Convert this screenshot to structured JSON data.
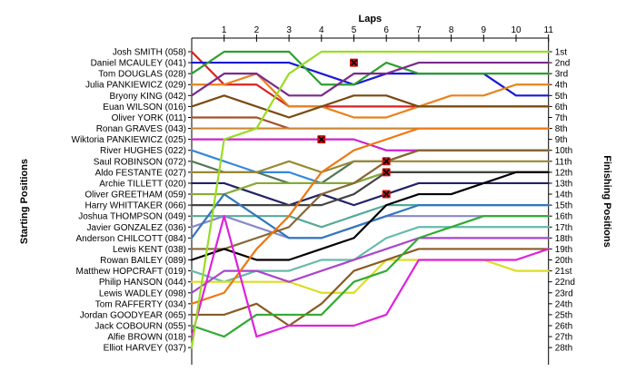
{
  "chart_data": {
    "type": "line",
    "title": "Laps",
    "ylabel_left": "Starting Positions",
    "ylabel_right": "Finishing Positions",
    "laps": [
      1,
      2,
      3,
      4,
      5,
      6,
      7,
      8,
      9,
      10,
      11
    ],
    "xlim": [
      0,
      11
    ],
    "ylim": [
      1,
      28
    ],
    "grid": false,
    "positions_right": [
      "1st",
      "2nd",
      "3rd",
      "4th",
      "5th",
      "6th",
      "7th",
      "8th",
      "9th",
      "10th",
      "11th",
      "12th",
      "13th",
      "14th",
      "15th",
      "16th",
      "17th",
      "18th",
      "19th",
      "20th",
      "21st",
      "22nd",
      "23rd",
      "24th",
      "25th",
      "26th",
      "27th",
      "28th"
    ],
    "series": [
      {
        "name": "Josh SMITH (058)",
        "color": "#d62222",
        "values": [
          1,
          4,
          4,
          6,
          6,
          6,
          6,
          6,
          6,
          6,
          6,
          6
        ]
      },
      {
        "name": "Daniel MCAULEY (041)",
        "color": "#1a1ad6",
        "values": [
          2,
          2,
          2,
          2,
          3,
          4,
          3,
          3,
          3,
          3,
          5,
          5
        ]
      },
      {
        "name": "Tom DOUGLAS (028)",
        "color": "#2ca02c",
        "values": [
          3,
          1,
          1,
          1,
          4,
          4,
          2,
          3,
          3,
          3,
          3,
          3
        ]
      },
      {
        "name": "Julia PANKIEWICZ (029)",
        "color": "#e8821c",
        "values": [
          4,
          4,
          3,
          6,
          6,
          7,
          7,
          6,
          5,
          5,
          4,
          4
        ]
      },
      {
        "name": "Bryony KING (042)",
        "color": "#7b2b8c",
        "values": [
          5,
          3,
          3,
          5,
          5,
          3,
          3,
          2,
          2,
          2,
          2,
          2
        ]
      },
      {
        "name": "Euan WILSON (016)",
        "color": "#7a4a10",
        "values": [
          6,
          5,
          6,
          7,
          6,
          5,
          5,
          6,
          6,
          6,
          6,
          6
        ]
      },
      {
        "name": "Oliver YORK (011)",
        "color": "#a0522d",
        "values": [
          7,
          7,
          7,
          8,
          8,
          8,
          8,
          8,
          8,
          8,
          8,
          8
        ]
      },
      {
        "name": "Ronan GRAVES (043)",
        "color": "#cc8833",
        "values": [
          8,
          8,
          8,
          8,
          8,
          8,
          8,
          8,
          8,
          8,
          8,
          8
        ]
      },
      {
        "name": "Wiktoria PANKIEWICZ (025)",
        "color": "#cc22cc",
        "values": [
          9,
          9,
          9,
          9,
          9,
          9,
          10,
          10,
          10,
          10,
          10,
          10
        ]
      },
      {
        "name": "River HUGHES (022)",
        "color": "#3388dd",
        "values": [
          10,
          11,
          12,
          12,
          13,
          13,
          12,
          12,
          12,
          12,
          12,
          12
        ]
      },
      {
        "name": "Saul ROBINSON (072)",
        "color": "#557755",
        "values": [
          11,
          12,
          12,
          13,
          13,
          11,
          11,
          10,
          10,
          10,
          10,
          10
        ]
      },
      {
        "name": "Aldo FESTANTE (027)",
        "color": "#998833",
        "values": [
          12,
          12,
          12,
          11,
          12,
          11,
          11,
          11,
          11,
          11,
          11,
          11
        ]
      },
      {
        "name": "Archie TILLETT (020)",
        "color": "#222266",
        "values": [
          13,
          13,
          14,
          15,
          14,
          15,
          14,
          13,
          13,
          13,
          13,
          13
        ]
      },
      {
        "name": "Oliver GREETHAM (059)",
        "color": "#88aa33",
        "values": [
          14,
          14,
          13,
          13,
          13,
          13,
          12,
          12,
          12,
          12,
          12,
          12
        ]
      },
      {
        "name": "Harry WHITTAKER (066)",
        "color": "#444444",
        "values": [
          15,
          15,
          15,
          15,
          15,
          14,
          12,
          12,
          12,
          12,
          12,
          12
        ]
      },
      {
        "name": "Joshua THOMPSON (049)",
        "color": "#55aa99",
        "values": [
          16,
          16,
          16,
          16,
          17,
          16,
          15,
          15,
          15,
          15,
          15,
          15
        ]
      },
      {
        "name": "Javier GONZALEZ (036)",
        "color": "#8888cc",
        "values": [
          17,
          16,
          17,
          18,
          18,
          17,
          16,
          16,
          16,
          16,
          16,
          16
        ]
      },
      {
        "name": "Anderson CHILCOTT (084)",
        "color": "#3377bb",
        "values": [
          18,
          14,
          16,
          18,
          18,
          17,
          16,
          15,
          15,
          15,
          15,
          15
        ]
      },
      {
        "name": "Lewis KENT (038)",
        "color": "#886633",
        "values": [
          19,
          19,
          18,
          17,
          14,
          13,
          11,
          10,
          10,
          10,
          10,
          10
        ]
      },
      {
        "name": "Rowan BAILEY (089)",
        "color": "#000000",
        "values": [
          20,
          19,
          20,
          20,
          19,
          18,
          15,
          14,
          14,
          13,
          12,
          12
        ]
      },
      {
        "name": "Matthew HOPCRAFT (019)",
        "color": "#66bbaa",
        "values": [
          21,
          22,
          21,
          21,
          20,
          20,
          18,
          17,
          17,
          17,
          17,
          17
        ]
      },
      {
        "name": "Philip HANSON (044)",
        "color": "#dddd22",
        "values": [
          22,
          22,
          22,
          22,
          23,
          23,
          20,
          20,
          20,
          20,
          21,
          21
        ]
      },
      {
        "name": "Lewis WADLEY (098)",
        "color": "#aa44cc",
        "values": [
          23,
          21,
          21,
          22,
          21,
          20,
          19,
          18,
          18,
          18,
          18,
          18
        ]
      },
      {
        "name": "Tom RAFFERTY (034)",
        "color": "#ee7711",
        "values": [
          24,
          23,
          19,
          16,
          12,
          10,
          9,
          8,
          8,
          8,
          8,
          8
        ]
      },
      {
        "name": "Jordan GOODYEAR (065)",
        "color": "#8a5a22",
        "values": [
          25,
          25,
          24,
          26,
          24,
          21,
          20,
          19,
          19,
          19,
          19,
          19
        ]
      },
      {
        "name": "Jack COBOURN (055)",
        "color": "#33aa33",
        "values": [
          26,
          27,
          25,
          25,
          25,
          22,
          21,
          18,
          17,
          16,
          16,
          16
        ]
      },
      {
        "name": "Alfie BROWN (018)",
        "color": "#dd22dd",
        "values": [
          27,
          16,
          27,
          26,
          26,
          26,
          25,
          20,
          20,
          20,
          20,
          19
        ]
      },
      {
        "name": "Elliot HARVEY (037)",
        "color": "#99dd22",
        "values": [
          28,
          9,
          8,
          3,
          1,
          1,
          1,
          1,
          1,
          1,
          1,
          1
        ]
      }
    ],
    "retirements": [
      {
        "lap": 5,
        "position": 2
      },
      {
        "lap": 4,
        "position": 9
      },
      {
        "lap": 6,
        "position": 11
      },
      {
        "lap": 6,
        "position": 12
      },
      {
        "lap": 6,
        "position": 14
      }
    ]
  }
}
